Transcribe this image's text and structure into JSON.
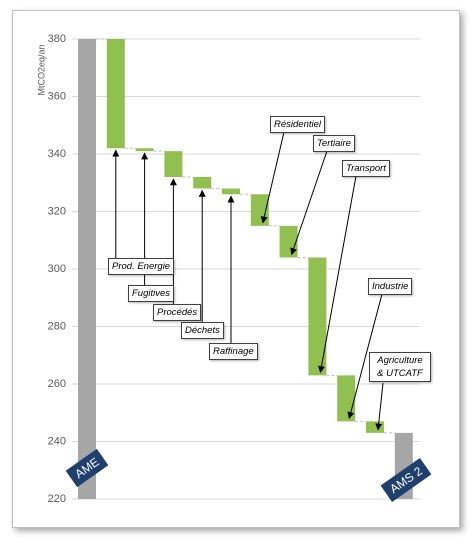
{
  "chart_data": {
    "type": "waterfall",
    "y_label": "MtCO2eq/an",
    "start": {
      "label": "AME",
      "value": 380
    },
    "categories": [
      "Prod. Energie",
      "Fugitives",
      "Procédés",
      "Déchets",
      "Raffinage",
      "Résidentiel",
      "Tertiaire",
      "Transport",
      "Industrie",
      "Agriculture & UTCATF"
    ],
    "values": [
      -38,
      -1,
      -9,
      -4,
      -2,
      -11,
      -11,
      -41,
      -16,
      -4
    ],
    "end": {
      "label": "AMS 2",
      "value": 243
    },
    "total_color": "#a6a6a6",
    "step_color": "#92c050",
    "label_color": "#1f3f6e",
    "ylim": [
      220,
      380
    ],
    "yticks": [
      220,
      240,
      260,
      280,
      300,
      320,
      340,
      360,
      380
    ],
    "grid": true
  }
}
